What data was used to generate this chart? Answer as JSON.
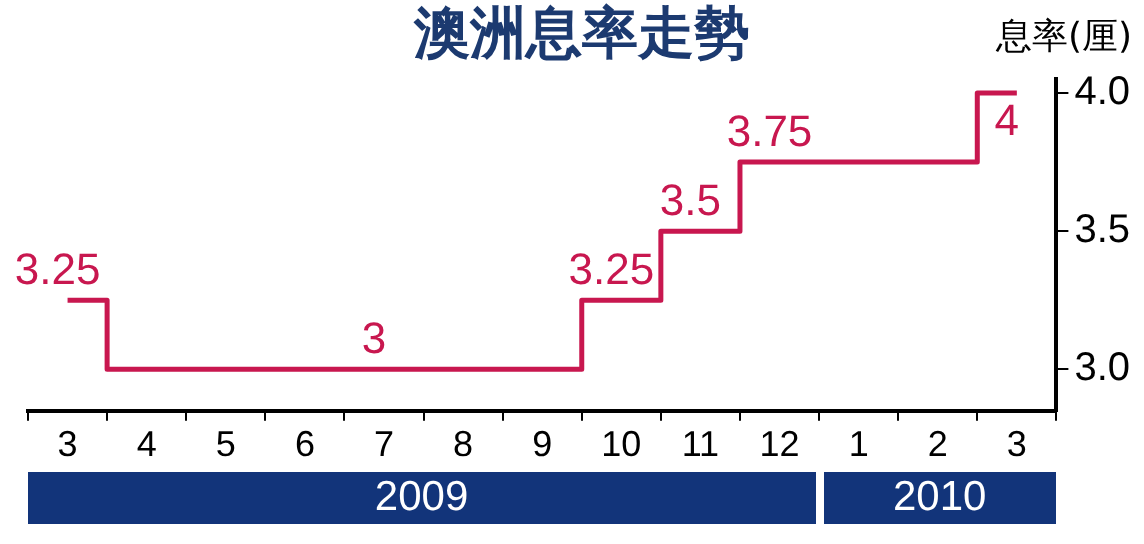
{
  "chart_data": {
    "type": "step",
    "title": "澳洲息率走勢",
    "ylabel": "息率(厘)",
    "categories": [
      "3",
      "4",
      "5",
      "6",
      "7",
      "8",
      "9",
      "10",
      "11",
      "12",
      "1",
      "2",
      "3"
    ],
    "series": [
      {
        "color": "#c8174f",
        "values": [
          3.25,
          3,
          3,
          3,
          3,
          3,
          3,
          3.25,
          3.5,
          3.75,
          3.75,
          3.75,
          4
        ],
        "value_labels": [
          "3.25",
          null,
          null,
          null,
          "3",
          null,
          null,
          "3.25",
          "3.5",
          "3.75",
          null,
          null,
          "4"
        ]
      }
    ],
    "ylim": [
      2.85,
      4.05
    ],
    "yticks": [
      {
        "value": 3,
        "label": "3.0"
      },
      {
        "value": 3.5,
        "label": "3.5"
      },
      {
        "value": 4,
        "label": "4.0"
      }
    ],
    "annotations": [
      "2009",
      "2010"
    ],
    "grid": false,
    "legend": false
  }
}
